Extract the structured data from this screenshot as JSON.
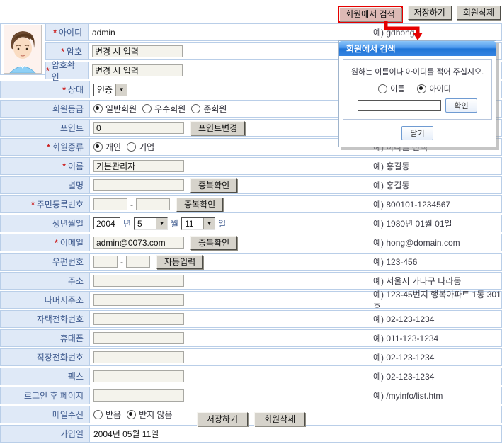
{
  "toolbar": {
    "search_label": "회원에서 검색",
    "save_label": "저장하기",
    "delete_label": "회원삭제"
  },
  "footer": {
    "save_label": "저장하기",
    "delete_label": "회원삭제"
  },
  "popup": {
    "title": "회원에서 검색",
    "message": "원하는 이름이나 아이디를 적어 주십시오.",
    "radio_options": [
      {
        "label": "이름",
        "checked": false
      },
      {
        "label": "아이디",
        "checked": true
      }
    ],
    "input_value": "",
    "confirm_label": "확인",
    "close_label": "닫기"
  },
  "form": {
    "rows": [
      {
        "label": "아이디",
        "required": true,
        "type": "static",
        "value": "admin",
        "example": "예) gdhong"
      },
      {
        "label": "암호",
        "required": true,
        "type": "input",
        "value": "변경 시 입력",
        "example": ""
      },
      {
        "label": "암호확인",
        "required": true,
        "type": "input",
        "value": "변경 시 입력",
        "example": ""
      },
      {
        "label": "상태",
        "required": true,
        "type": "select",
        "value": "인증",
        "example": ""
      },
      {
        "label": "회원등급",
        "required": false,
        "type": "radio",
        "options": [
          "일반회원",
          "우수회원",
          "준회원"
        ],
        "selected": 0,
        "example": ""
      },
      {
        "label": "포인트",
        "required": false,
        "type": "input",
        "value": "0",
        "button": "포인트변경",
        "example": ""
      },
      {
        "label": "회원종류",
        "required": true,
        "type": "radio",
        "options": [
          "개인",
          "기업"
        ],
        "selected": 0,
        "example": "예) 하나를 선택"
      },
      {
        "label": "이름",
        "required": true,
        "type": "input",
        "value": "기본관리자",
        "example": "예) 홍길동"
      },
      {
        "label": "별명",
        "required": false,
        "type": "input",
        "value": "",
        "button": "중복확인",
        "example": "예) 홍길동"
      },
      {
        "label": "주민등록번호",
        "required": true,
        "type": "pair",
        "values": [
          "",
          ""
        ],
        "small": false,
        "button": "중복확인",
        "example": "예) 800101-1234567"
      },
      {
        "label": "생년월일",
        "required": false,
        "type": "date",
        "year": "2004",
        "month": "5",
        "day": "11",
        "units": [
          "년",
          "월",
          "일"
        ],
        "example": "예) 1980년 01월 01일"
      },
      {
        "label": "이메일",
        "required": true,
        "type": "input",
        "value": "admin@0073.com",
        "button": "중복확인",
        "example": "예) hong@domain.com"
      },
      {
        "label": "우편번호",
        "required": false,
        "type": "pair",
        "values": [
          "",
          ""
        ],
        "small": true,
        "button": "자동입력",
        "example": "예) 123-456"
      },
      {
        "label": "주소",
        "required": false,
        "type": "input",
        "value": "",
        "example": "예) 서울시 가나구 다라동"
      },
      {
        "label": "나머지주소",
        "required": false,
        "type": "input",
        "value": "",
        "example": "예) 123-45번지 행복아파트 1동 301호"
      },
      {
        "label": "자택전화번호",
        "required": false,
        "type": "input",
        "value": "",
        "example": "예) 02-123-1234"
      },
      {
        "label": "휴대폰",
        "required": false,
        "type": "input",
        "value": "",
        "example": "예) 011-123-1234"
      },
      {
        "label": "직장전화번호",
        "required": false,
        "type": "input",
        "value": "",
        "example": "예) 02-123-1234"
      },
      {
        "label": "팩스",
        "required": false,
        "type": "input",
        "value": "",
        "example": "예) 02-123-1234"
      },
      {
        "label": "로그인 후 페이지",
        "required": false,
        "type": "input",
        "value": "",
        "example": "예) /myinfo/list.htm"
      },
      {
        "label": "메일수신",
        "required": false,
        "type": "radio",
        "options": [
          "받음",
          "받지 않음"
        ],
        "selected": 1,
        "example": ""
      },
      {
        "label": "가입일",
        "required": false,
        "type": "static",
        "value": "2004년 05월 11일",
        "example": ""
      }
    ]
  },
  "colors": {
    "label_bg": "#dfe9f7",
    "table_border": "#b9cee8",
    "label_text": "#3e5a8e",
    "annotation_red": "#e60000",
    "popup_title_top": "#8ec7f9",
    "popup_title_bottom": "#1f74d6",
    "button_face": "#d6d3cb"
  }
}
